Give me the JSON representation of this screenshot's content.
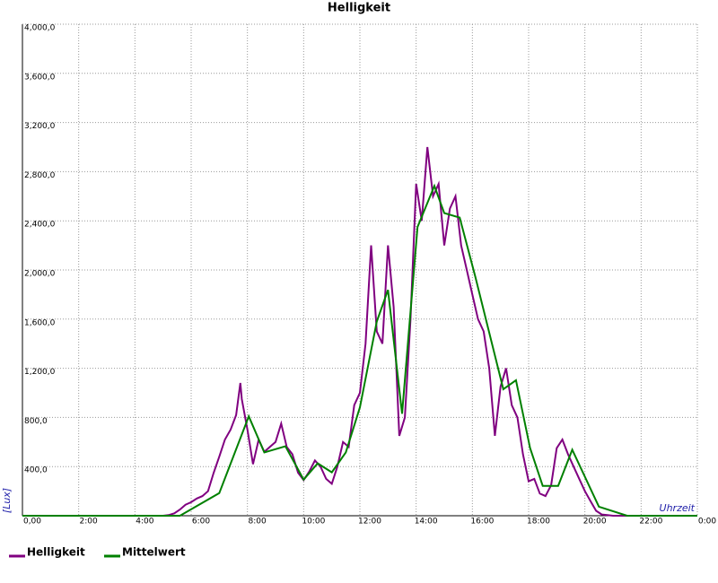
{
  "chart_data": {
    "type": "line",
    "title": "Helligkeit",
    "y_label": "[Lux]",
    "x_label": "Uhrzeit",
    "xlim": [
      0,
      24
    ],
    "ylim": [
      0,
      4000
    ],
    "xticks": [
      {
        "value": 0,
        "label": "0,00"
      },
      {
        "value": 2,
        "label": "2:00"
      },
      {
        "value": 4,
        "label": "4:00"
      },
      {
        "value": 6,
        "label": "6:00"
      },
      {
        "value": 8,
        "label": "8:00"
      },
      {
        "value": 10,
        "label": "10:00"
      },
      {
        "value": 12,
        "label": "12:00"
      },
      {
        "value": 14,
        "label": "14:00"
      },
      {
        "value": 16,
        "label": "16:00"
      },
      {
        "value": 18,
        "label": "18:00"
      },
      {
        "value": 20,
        "label": "20:00"
      },
      {
        "value": 22,
        "label": "22:00"
      },
      {
        "value": 24,
        "label": "0:00"
      }
    ],
    "yticks": [
      {
        "value": 400,
        "label": "400,0"
      },
      {
        "value": 800,
        "label": "800,0"
      },
      {
        "value": 1200,
        "label": "1,200,0"
      },
      {
        "value": 1600,
        "label": "1,600,0"
      },
      {
        "value": 2000,
        "label": "2,000,0"
      },
      {
        "value": 2400,
        "label": "2,400,0"
      },
      {
        "value": 2800,
        "label": "2,800,0"
      },
      {
        "value": 3200,
        "label": "3,200,0"
      },
      {
        "value": 3600,
        "label": "3,600,0"
      },
      {
        "value": 4000,
        "label": "4,000,0"
      }
    ],
    "grid": true,
    "series": [
      {
        "name": "Helligkeit",
        "color": "#800080",
        "x": [
          0,
          5.0,
          5.2,
          5.4,
          5.6,
          5.8,
          6.0,
          6.2,
          6.4,
          6.6,
          6.8,
          7.0,
          7.2,
          7.4,
          7.6,
          7.75,
          7.8,
          8.0,
          8.2,
          8.4,
          8.6,
          8.8,
          9.0,
          9.2,
          9.4,
          9.6,
          9.8,
          10.0,
          10.2,
          10.4,
          10.6,
          10.8,
          11.0,
          11.2,
          11.4,
          11.6,
          11.8,
          12.0,
          12.2,
          12.4,
          12.6,
          12.8,
          13.0,
          13.2,
          13.4,
          13.6,
          13.8,
          14.0,
          14.2,
          14.4,
          14.6,
          14.8,
          15.0,
          15.2,
          15.4,
          15.6,
          15.8,
          16.0,
          16.2,
          16.4,
          16.6,
          16.8,
          17.0,
          17.2,
          17.4,
          17.6,
          17.8,
          18.0,
          18.2,
          18.4,
          18.6,
          18.8,
          19.0,
          19.2,
          19.4,
          19.6,
          19.8,
          20.0,
          20.2,
          20.4,
          20.6,
          20.8,
          21.0,
          24
        ],
        "values": [
          0,
          0,
          5,
          20,
          50,
          90,
          110,
          140,
          160,
          200,
          350,
          480,
          620,
          700,
          820,
          1080,
          950,
          700,
          420,
          620,
          520,
          560,
          600,
          750,
          560,
          500,
          350,
          290,
          360,
          450,
          400,
          300,
          260,
          400,
          600,
          560,
          900,
          1000,
          1400,
          2200,
          1500,
          1400,
          2200,
          1700,
          650,
          800,
          1600,
          2700,
          2400,
          3000,
          2600,
          2700,
          2200,
          2500,
          2600,
          2200,
          2000,
          1800,
          1600,
          1500,
          1200,
          650,
          1050,
          1200,
          900,
          800,
          500,
          280,
          300,
          180,
          160,
          250,
          550,
          620,
          500,
          400,
          300,
          200,
          120,
          40,
          10,
          5,
          0,
          0
        ]
      },
      {
        "name": "Mittelwert",
        "color": "#008000",
        "x": [
          0,
          5.6,
          7.0,
          8.05,
          8.6,
          9.35,
          10.0,
          10.5,
          11.0,
          11.5,
          12.0,
          12.6,
          13.0,
          13.5,
          14.05,
          14.65,
          15.0,
          15.55,
          16.1,
          17.1,
          17.55,
          18.05,
          18.5,
          19.05,
          19.55,
          20.5,
          21.5,
          24
        ],
        "values": [
          0,
          0,
          184,
          809,
          515,
          566,
          294,
          426,
          353,
          515,
          882,
          1580,
          1838,
          830,
          2350,
          2684,
          2463,
          2426,
          1948,
          1029,
          1103,
          551,
          243,
          243,
          537,
          74,
          0,
          0
        ]
      }
    ]
  }
}
